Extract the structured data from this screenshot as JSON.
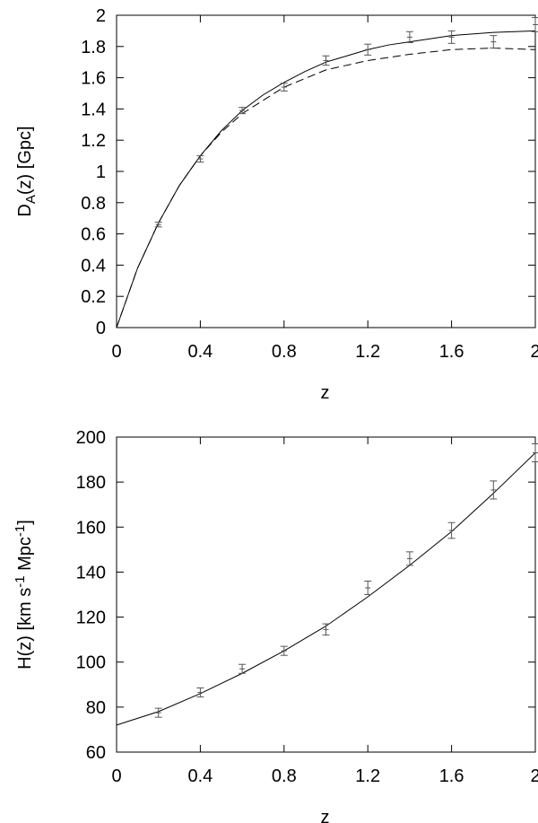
{
  "chart_data": [
    {
      "type": "line",
      "ylabel": [
        {
          "text": "D"
        },
        {
          "text": "A",
          "sub": true
        },
        {
          "text": "(z) [Gpc]"
        }
      ],
      "xlabel": "z",
      "xlim": [
        0,
        2
      ],
      "xticks": [
        0,
        0.4,
        0.8,
        1.2,
        1.6,
        2
      ],
      "ylim": [
        0,
        2
      ],
      "yticks": [
        0,
        0.2,
        0.4,
        0.6,
        0.8,
        1,
        1.2,
        1.4,
        1.6,
        1.8,
        2
      ],
      "series": [
        {
          "style": "solid",
          "color": "#000000",
          "x": [
            0,
            0.1,
            0.2,
            0.3,
            0.4,
            0.5,
            0.6,
            0.7,
            0.8,
            0.9,
            1.0,
            1.1,
            1.2,
            1.3,
            1.4,
            1.6,
            1.8,
            2.0
          ],
          "values": [
            0,
            0.38,
            0.67,
            0.91,
            1.1,
            1.26,
            1.39,
            1.49,
            1.57,
            1.64,
            1.7,
            1.74,
            1.78,
            1.81,
            1.83,
            1.87,
            1.89,
            1.9
          ]
        },
        {
          "style": "dashed",
          "color": "#000000",
          "x": [
            0,
            0.1,
            0.2,
            0.3,
            0.4,
            0.5,
            0.6,
            0.8,
            1.0,
            1.2,
            1.4,
            1.6,
            1.8,
            2.0
          ],
          "values": [
            0,
            0.38,
            0.67,
            0.91,
            1.1,
            1.25,
            1.37,
            1.54,
            1.65,
            1.71,
            1.75,
            1.78,
            1.79,
            1.78
          ]
        },
        {
          "style": "points",
          "color": "#555555",
          "x": [
            0.2,
            0.4,
            0.6,
            0.8,
            1.0,
            1.2,
            1.4,
            1.6,
            1.8,
            2.0
          ],
          "values": [
            0.66,
            1.08,
            1.39,
            1.54,
            1.71,
            1.78,
            1.86,
            1.86,
            1.83,
            1.94
          ],
          "errors": [
            0.015,
            0.02,
            0.02,
            0.025,
            0.03,
            0.035,
            0.035,
            0.04,
            0.04,
            0.045
          ]
        }
      ]
    },
    {
      "type": "line",
      "ylabel": [
        {
          "text": "H(z) [km s"
        },
        {
          "text": "-1",
          "sup": true
        },
        {
          "text": " Mpc"
        },
        {
          "text": "-1",
          "sup": true
        },
        {
          "text": "]"
        }
      ],
      "xlabel": "z",
      "xlim": [
        0,
        2
      ],
      "xticks": [
        0,
        0.4,
        0.8,
        1.2,
        1.6,
        2
      ],
      "ylim": [
        60,
        200
      ],
      "yticks": [
        60,
        80,
        100,
        120,
        140,
        160,
        180,
        200
      ],
      "series": [
        {
          "style": "solid",
          "color": "#000000",
          "x": [
            0,
            0.2,
            0.4,
            0.6,
            0.8,
            1.0,
            1.2,
            1.4,
            1.6,
            1.8,
            2.0
          ],
          "values": [
            72,
            78,
            86,
            95,
            105,
            116,
            129,
            143,
            158,
            175,
            193
          ]
        },
        {
          "style": "points",
          "color": "#555555",
          "x": [
            0.2,
            0.4,
            0.6,
            0.8,
            1.0,
            1.2,
            1.4,
            1.6,
            1.8,
            2.0
          ],
          "values": [
            77.5,
            86.5,
            97,
            105,
            114.5,
            133,
            146,
            158.5,
            176.5,
            193
          ],
          "errors": [
            2,
            2,
            2,
            2,
            2.5,
            3,
            3,
            3.5,
            4,
            4
          ]
        }
      ]
    }
  ]
}
